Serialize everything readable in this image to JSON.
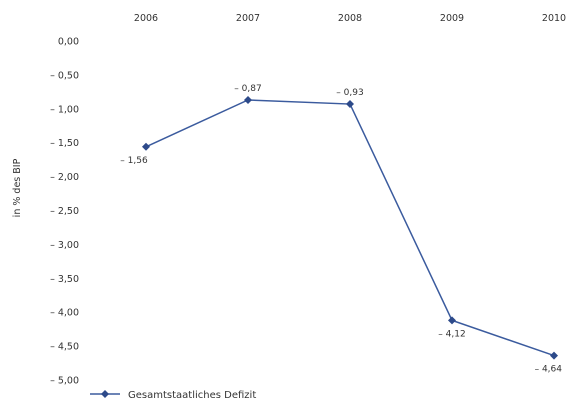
{
  "chart_data": {
    "type": "line",
    "x": [
      "2006",
      "2007",
      "2008",
      "2009",
      "2010"
    ],
    "series": [
      {
        "name": "Gesamtstaatliches Defizit",
        "values": [
          -1.56,
          -0.87,
          -0.93,
          -4.12,
          -4.64
        ],
        "labels": [
          "– 1,56",
          "– 0,87",
          "– 0,93",
          "– 4,12",
          "– 4,64"
        ],
        "color": "#3b5b9e"
      }
    ],
    "ylabel": "in % des BIP",
    "ylim": [
      -5.0,
      0.0
    ],
    "yticks": [
      0.0,
      -0.5,
      -1.0,
      -1.5,
      -2.0,
      -2.5,
      -3.0,
      -3.5,
      -4.0,
      -4.5,
      -5.0
    ],
    "ytick_labels": [
      "0,00",
      "– 0,50",
      "– 1,00",
      "– 1,50",
      "– 2,00",
      "– 2,50",
      "– 3,00",
      "– 3,50",
      "– 4,00",
      "– 4,50",
      "– 5,00"
    ],
    "xaxis_position": "top",
    "grid": false,
    "legend": "bottom-left"
  }
}
